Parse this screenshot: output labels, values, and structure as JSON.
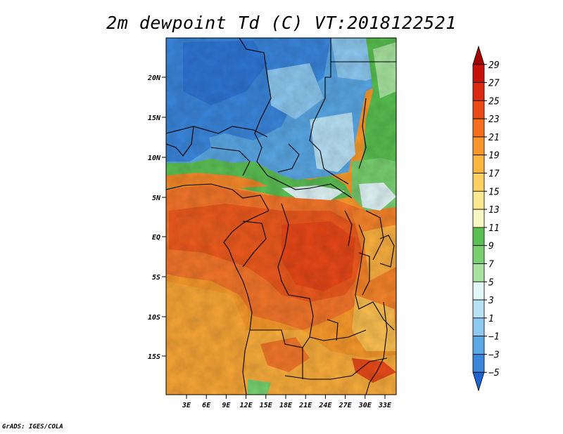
{
  "title": "2m dewpoint Td (C) VT:2018122521",
  "credit": "GrADS: IGES/COLA",
  "map": {
    "lat_labels": [
      "20N",
      "15N",
      "10N",
      "5N",
      "EQ",
      "5S",
      "10S",
      "15S"
    ],
    "lon_labels": [
      "3E",
      "6E",
      "9E",
      "12E",
      "15E",
      "18E",
      "21E",
      "24E",
      "27E",
      "30E",
      "33E"
    ]
  },
  "colorbar": {
    "labels": [
      "29",
      "27",
      "25",
      "23",
      "21",
      "19",
      "17",
      "15",
      "13",
      "11",
      "9",
      "7",
      "5",
      "3",
      "1",
      "−1",
      "−3",
      "−5"
    ],
    "colors": [
      "#a50000",
      "#c8100a",
      "#dc2a10",
      "#ec4a18",
      "#f66e1e",
      "#fa962a",
      "#fcb640",
      "#fdd060",
      "#fde890",
      "#f7f7c0",
      "#58c050",
      "#78d070",
      "#a8e4a0",
      "#e2f6f8",
      "#b8e2f6",
      "#8cc8f0",
      "#5aa8e6",
      "#3a86dc",
      "#1e64d0"
    ]
  }
}
